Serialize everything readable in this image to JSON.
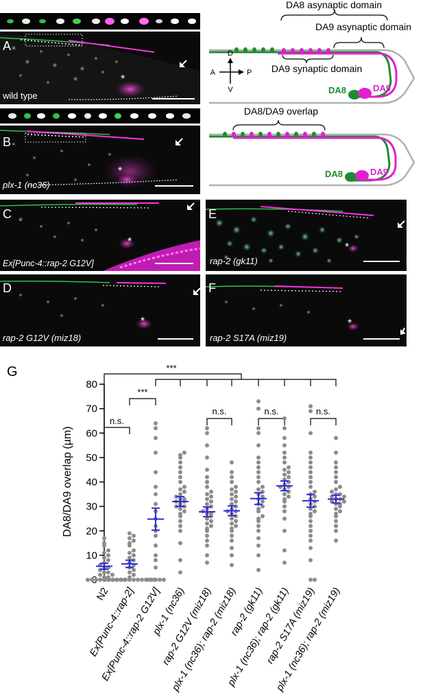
{
  "panels": {
    "A": {
      "letter": "A",
      "label": "wild type"
    },
    "B": {
      "letter": "B",
      "label": "plx-1 (nc36)"
    },
    "C": {
      "letter": "C",
      "label": "Ex[Punc-4::rap-2 G12V]"
    },
    "D": {
      "letter": "D",
      "label": "rap-2 G12V (miz18)"
    },
    "E": {
      "letter": "E",
      "label": "rap-2 (gk11)"
    },
    "F": {
      "letter": "F",
      "label": "rap-2 S17A (miz19)"
    }
  },
  "diagram_top": {
    "da8_asynaptic": "DA8 asynaptic domain",
    "da9_asynaptic": "DA9 asynaptic domain",
    "da9_synaptic": "DA9 synaptic domain",
    "da8": "DA8",
    "da9": "DA9",
    "axis": {
      "d": "D",
      "v": "V",
      "a": "A",
      "p": "P"
    }
  },
  "diagram_bottom": {
    "overlap": "DA8/DA9 overlap",
    "da8": "DA8",
    "da9": "DA9"
  },
  "colors": {
    "green": "#1e8c2e",
    "magenta": "#e020d0",
    "blue": "#2b2bd6",
    "dot": "#8c8c8c"
  },
  "chart_data": {
    "type": "scatter",
    "panel_letter": "G",
    "ylabel": "DA8/DA9 overlap (µm)",
    "ylim": [
      0,
      80
    ],
    "yticks": [
      0,
      10,
      20,
      30,
      40,
      50,
      60,
      70,
      80
    ],
    "categories": [
      {
        "label": "N2",
        "italic": false
      },
      {
        "label": "Ex[Punc-4::rap-2]",
        "italic": true
      },
      {
        "label": "Ex[Punc-4::rap-2 G12V]",
        "italic": true
      },
      {
        "label": "plx-1 (nc36)",
        "italic": true
      },
      {
        "label": "rap-2 G12V (miz18)",
        "italic": true
      },
      {
        "label": "plx-1 (nc36); rap-2 (miz18)",
        "italic": true
      },
      {
        "label": "rap-2 (gk11)",
        "italic": true
      },
      {
        "label": "plx-1 (nc36); rap-2 (gk11)",
        "italic": true
      },
      {
        "label": "rap-2 S17A (miz19)",
        "italic": true
      },
      {
        "label": "plx-1 (nc36); rap-2 (miz19)",
        "italic": true
      }
    ],
    "means": [
      5.5,
      6.5,
      24.8,
      32.0,
      27.8,
      28.2,
      33.2,
      38.4,
      32.3,
      33.0
    ],
    "sem": [
      1.2,
      1.5,
      4.5,
      2.0,
      2.0,
      2.0,
      2.4,
      2.0,
      2.6,
      1.6
    ],
    "significance": [
      {
        "from": 0,
        "to": 1,
        "label": "n.s."
      },
      {
        "from": 1,
        "to": 2,
        "label": "***"
      },
      {
        "from": 0,
        "to": 9,
        "label": "***"
      },
      {
        "from": 4,
        "to": 5,
        "label": "n.s."
      },
      {
        "from": 6,
        "to": 7,
        "label": "n.s."
      },
      {
        "from": 8,
        "to": 9,
        "label": "n.s."
      }
    ],
    "points": [
      [
        0,
        0,
        0,
        0,
        0,
        0,
        0,
        0,
        0,
        0,
        1,
        1,
        2,
        2,
        3,
        3,
        4,
        5,
        5,
        6,
        7,
        8,
        9,
        10,
        11,
        12,
        14,
        15,
        17
      ],
      [
        0,
        0,
        0,
        0,
        0,
        0,
        0,
        0,
        0,
        0,
        0,
        0,
        0,
        1,
        2,
        3,
        4,
        5,
        6,
        7,
        8,
        9,
        10,
        11,
        12,
        14,
        15,
        16,
        17,
        18,
        19
      ],
      [
        0,
        0,
        0,
        0,
        0,
        5,
        8,
        10,
        14,
        18,
        20,
        22,
        25,
        28,
        31,
        35,
        38,
        44,
        52,
        58,
        62,
        64
      ],
      [
        3,
        8,
        15,
        20,
        22,
        24,
        26,
        27,
        28,
        29,
        30,
        30,
        31,
        32,
        32,
        33,
        33,
        34,
        35,
        36,
        37,
        38,
        40,
        42,
        44,
        46,
        48,
        50,
        51,
        52
      ],
      [
        7,
        10,
        14,
        16,
        18,
        20,
        21,
        22,
        23,
        24,
        25,
        26,
        27,
        27,
        28,
        29,
        30,
        31,
        32,
        33,
        34,
        35,
        36,
        38,
        40,
        42,
        45,
        50,
        55,
        60,
        62
      ],
      [
        6,
        10,
        13,
        16,
        18,
        20,
        21,
        22,
        23,
        24,
        25,
        26,
        27,
        28,
        28,
        29,
        30,
        31,
        32,
        33,
        34,
        35,
        36,
        37,
        38,
        40,
        42,
        44,
        48
      ],
      [
        4,
        10,
        14,
        17,
        20,
        22,
        24,
        25,
        26,
        28,
        29,
        30,
        31,
        32,
        33,
        34,
        35,
        36,
        37,
        38,
        40,
        42,
        44,
        46,
        48,
        50,
        55,
        60,
        62,
        70,
        73
      ],
      [
        7,
        12,
        20,
        25,
        28,
        30,
        32,
        33,
        34,
        35,
        36,
        37,
        38,
        38,
        39,
        40,
        41,
        42,
        43,
        44,
        45,
        46,
        48,
        50,
        52,
        55,
        58,
        62,
        66
      ],
      [
        0,
        0,
        8,
        13,
        16,
        18,
        20,
        22,
        24,
        26,
        27,
        28,
        29,
        30,
        31,
        32,
        33,
        34,
        35,
        36,
        38,
        40,
        42,
        44,
        46,
        48,
        50,
        52,
        60,
        69,
        71
      ],
      [
        16,
        20,
        22,
        24,
        26,
        27,
        28,
        29,
        30,
        31,
        31,
        32,
        32,
        33,
        33,
        34,
        34,
        35,
        35,
        36,
        37,
        38,
        40,
        42,
        44,
        46,
        48,
        52,
        58
      ]
    ]
  }
}
